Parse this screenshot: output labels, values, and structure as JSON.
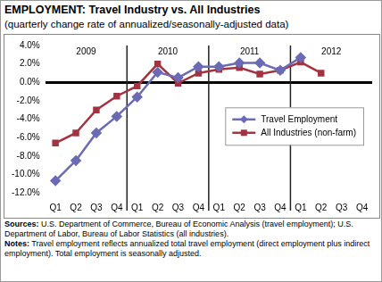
{
  "chart_data": {
    "type": "line",
    "title": "EMPLOYMENT: Travel Industry vs. All Industries",
    "subtitle": "(quarterly change rate of annualized/seasonally-adjusted data)",
    "categories": [
      "Q1",
      "Q2",
      "Q3",
      "Q4",
      "Q1",
      "Q2",
      "Q3",
      "Q4",
      "Q1",
      "Q2",
      "Q3",
      "Q4",
      "Q1",
      "Q2",
      "Q3",
      "Q4"
    ],
    "category_groups": [
      "2009",
      "2010",
      "2011",
      "2012"
    ],
    "series": [
      {
        "name": "Travel Employment",
        "color": "#6b6bb5",
        "marker": "diamond",
        "values": [
          -10.7,
          -8.5,
          -5.5,
          -3.7,
          -1.6,
          1.1,
          0.5,
          1.7,
          1.7,
          2.1,
          2.1,
          1.3,
          2.7,
          null,
          null,
          null
        ]
      },
      {
        "name": "All Industries (non-farm)",
        "color": "#a33340",
        "marker": "square",
        "values": [
          -6.6,
          -5.5,
          -3.0,
          -1.5,
          -0.4,
          2.0,
          -0.1,
          1.0,
          1.4,
          1.6,
          0.9,
          1.3,
          2.2,
          1.0,
          null,
          null
        ]
      }
    ],
    "ylim": [
      -12,
      4
    ],
    "yticks": [
      {
        "value": -12,
        "label": "-12.0%"
      },
      {
        "value": -10,
        "label": "-10.0%"
      },
      {
        "value": -8,
        "label": "-8.0%"
      },
      {
        "value": -6,
        "label": "-6.0%"
      },
      {
        "value": -4,
        "label": "-4.0%"
      },
      {
        "value": -2,
        "label": "-2.0%"
      },
      {
        "value": 0,
        "label": "0.0%"
      },
      {
        "value": 2,
        "label": "2.0%"
      },
      {
        "value": 4,
        "label": "4.0%"
      }
    ],
    "grid": false,
    "legend": "right",
    "sources": {
      "label": "Sources:",
      "text": "U.S. Department of Commerce, Bureau of Economic Analysis (travel employment); U.S. Department of Labor, Bureau of Labor Statistics (all industries)."
    },
    "notes": {
      "label": "Notes:",
      "text": "Travel employment reflects annualized total travel employment (direct employment plus indirect employment). Total employment is seasonally adjusted."
    }
  }
}
